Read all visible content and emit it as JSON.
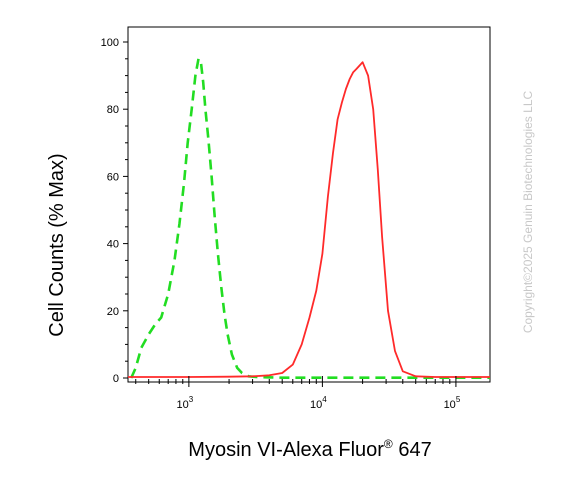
{
  "chart_data": {
    "type": "line",
    "title": "",
    "xlabel": {
      "main": "Myosin VI-Alexa Fluor",
      "sup": "®",
      "tail": " 647"
    },
    "ylabel": "Cell Counts (% Max)",
    "x_scale": "log",
    "xlim": [
      350,
      180000
    ],
    "ylim": [
      0,
      100
    ],
    "x_ticks": [
      {
        "value": 1000,
        "base": "10",
        "exp": "3"
      },
      {
        "value": 10000,
        "base": "10",
        "exp": "4"
      },
      {
        "value": 100000,
        "base": "10",
        "exp": "5"
      }
    ],
    "y_ticks": [
      "0",
      "20",
      "40",
      "60",
      "80",
      "100"
    ],
    "grid": false,
    "legend": "none",
    "series": [
      {
        "color": "#22dd22",
        "style": "dashed",
        "x": [
          370,
          400,
          440,
          500,
          560,
          620,
          700,
          780,
          850,
          920,
          980,
          1050,
          1120,
          1180,
          1230,
          1280,
          1330,
          1400,
          1480,
          1560,
          1650,
          1750,
          1850,
          1950,
          2100,
          2300,
          2500,
          2800,
          3200,
          3800,
          5000,
          10000,
          50000,
          180000
        ],
        "y": [
          0,
          3,
          9,
          13,
          16,
          18,
          25,
          35,
          46,
          58,
          70,
          80,
          90,
          95,
          94,
          88,
          80,
          71,
          60,
          48,
          37,
          27,
          19,
          13,
          7,
          3,
          1.5,
          0.5,
          0.3,
          0.2,
          0.1,
          0.1,
          0.1,
          0.1
        ]
      },
      {
        "color": "#ff2a2a",
        "style": "solid",
        "x": [
          350,
          1000,
          2000,
          3000,
          4000,
          5000,
          6000,
          7000,
          8000,
          9000,
          10000,
          11000,
          12000,
          13000,
          14000,
          15000,
          16000,
          17000,
          18000,
          19000,
          20000,
          22000,
          24000,
          26000,
          28000,
          31000,
          35000,
          40000,
          50000,
          70000,
          100000,
          180000
        ],
        "y": [
          0.3,
          0.3,
          0.4,
          0.5,
          0.8,
          1.5,
          4,
          10,
          18,
          26,
          37,
          54,
          67,
          77,
          82,
          86,
          89,
          91,
          92,
          93,
          94,
          90,
          80,
          62,
          42,
          20,
          8,
          2,
          0.5,
          0.3,
          0.3,
          0.3
        ]
      }
    ]
  },
  "copyright": "Copyright©2025 Genuin Biotechnologies LLC"
}
